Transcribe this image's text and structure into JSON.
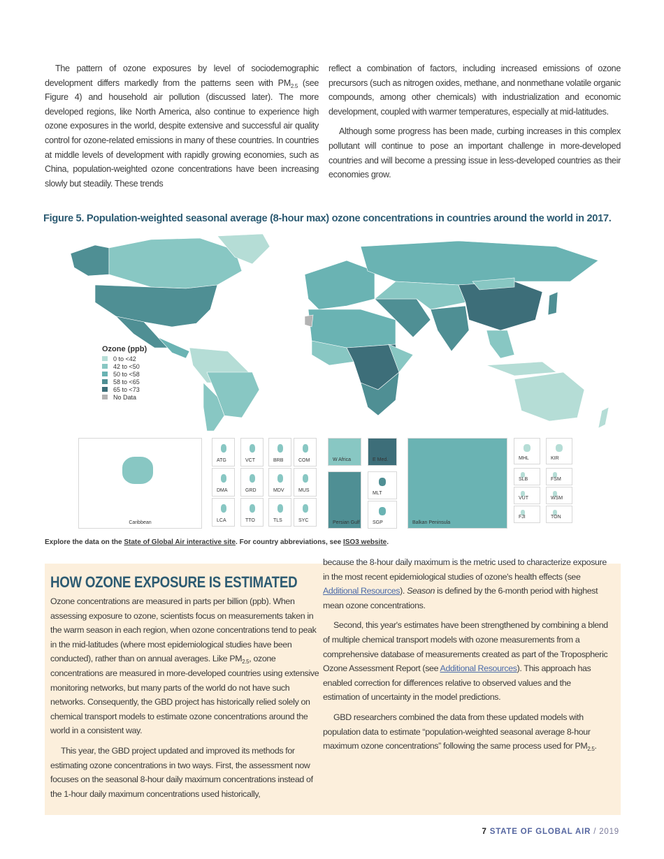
{
  "intro": {
    "col1": "The pattern of ozone exposures by level of sociodemographic development differs markedly from the patterns seen with PM",
    "col1_sub": "2.5",
    "col1_rest": " (see Figure 4) and household air pollution (discussed later). The more developed regions, like North America, also continue to experience high ozone exposures in the world, despite extensive and successful air quality control for ozone-related emissions in many of these countries. In countries at middle levels of development with rapidly growing economies, such as China, population-weighted ozone concentrations have been increasing slowly but steadily. These trends",
    "col2_p1": "reflect a combination of factors, including increased emissions of ozone precursors (such as nitrogen oxides, methane, and nonmethane volatile organic compounds, among other chemicals) with industrialization and economic development, coupled with warmer temperatures, especially at mid-latitudes.",
    "col2_p2": "Although some progress has been made, curbing increases in this complex pollutant will continue to pose an important challenge in more-developed countries and will become a pressing issue in less-developed countries as their economies grow."
  },
  "figure": {
    "title": "Figure 5. Population-weighted seasonal average (8-hour max) ozone concentrations in countries around the world in 2017.",
    "legend": {
      "title": "Ozone (ppb)",
      "items": [
        {
          "label": "0 to <42",
          "color": "#b5ddd6"
        },
        {
          "label": "42 to <50",
          "color": "#88c7c3"
        },
        {
          "label": "50 to <58",
          "color": "#6ab3b3"
        },
        {
          "label": "58 to <65",
          "color": "#4f8f94"
        },
        {
          "label": "65 to <73",
          "color": "#3d6e79"
        },
        {
          "label": "No Data",
          "color": "#b3b3b3"
        }
      ]
    },
    "insets": {
      "caribbean": "Caribbean",
      "small": [
        "ATG",
        "VCT",
        "BRB",
        "COM",
        "DMA",
        "GRD",
        "MDV",
        "MUS",
        "LCA",
        "TTO",
        "TLS",
        "SYC"
      ],
      "regions": [
        "W Africa",
        "E Med.",
        "Persian Gulf",
        "MLT",
        "SGP",
        "Balkan Peninsula"
      ],
      "pacific": [
        "MHL",
        "KIR",
        "SLB",
        "FSM",
        "VUT",
        "WSM",
        "FJI",
        "TON"
      ]
    },
    "caption": {
      "prefix": "Explore the data on the ",
      "link1": "State of Global Air interactive site",
      "middle": ". For country abbreviations, see ",
      "link2": "ISO3 website",
      "suffix": "."
    }
  },
  "box": {
    "heading": "HOW OZONE EXPOSURE IS ESTIMATED",
    "p1a": "Ozone concentrations are measured in parts per billion (ppb). When assessing exposure to ozone, scientists focus on measurements taken in the warm season in each region, when ozone concentrations tend to peak in the mid-latitudes (where most epidemiological studies have been conducted), rather than on annual averages. Like PM",
    "p1sub": "2.5",
    "p1b": ", ozone concentrations are measured in more-developed countries using extensive monitoring networks, but many parts of the world do not have such networks. Consequently, the GBD project has historically relied solely on chemical transport models to estimate ozone concentrations around the world in a consistent way.",
    "p2": "This year, the GBD project updated and improved its methods for estimating ozone concentrations in two ways. First, the assessment now focuses on the seasonal 8-hour daily maximum concentrations instead of the 1-hour daily maximum concentrations used historically,",
    "p3a": "because the 8-hour daily maximum is the metric used to characterize exposure in the most recent epidemiological studies of ozone's health effects (see ",
    "p3link": "Additional Resources",
    "p3b": "). ",
    "p3em": "Season",
    "p3c": " is defined by the 6-month period with highest mean ozone concentrations.",
    "p4a": "Second, this year's estimates have been strengthened by combining a blend of multiple chemical transport models with ozone measurements from a comprehensive database of measurements created as part of the Tropospheric Ozone Assessment Report (see ",
    "p4link": "Additional Resources",
    "p4b": "). This approach has enabled correction for differences relative to observed values and the estimation of uncertainty in the model predictions.",
    "p5a": "GBD researchers combined the data from these updated models with population data to estimate “population-weighted seasonal average 8-hour maximum ozone concentrations” following the same process used for PM",
    "p5sub": "2.5",
    "p5b": "."
  },
  "footer": {
    "page": "7",
    "title": "STATE OF GLOBAL AIR",
    "sep": " / ",
    "year": "2019"
  }
}
